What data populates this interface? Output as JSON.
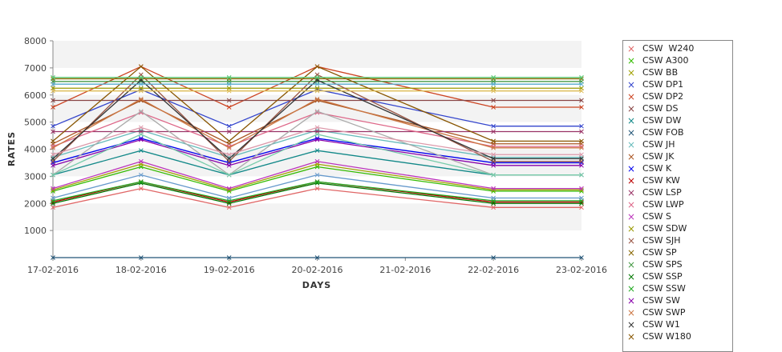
{
  "chart_data": {
    "type": "line",
    "title": "",
    "xlabel": "DAYS",
    "ylabel": "RATES",
    "categories": [
      "17-02-2016",
      "18-02-2016",
      "19-02-2016",
      "20-02-2016",
      "21-02-2016",
      "22-02-2016",
      "23-02-2016"
    ],
    "y_ticks": [
      "1000",
      "2000",
      "3000",
      "4000",
      "5000",
      "6000",
      "7000",
      "8000"
    ],
    "ylim": [
      0,
      8000
    ],
    "grid": "alternating horizontal bands",
    "legend_position": "right",
    "series": [
      {
        "name": "CSW  W240",
        "color": "#e06666",
        "values": [
          1850,
          2550,
          1850,
          2550,
          null,
          1850,
          1850
        ]
      },
      {
        "name": "CSW A300",
        "color": "#33bb00",
        "values": [
          2450,
          3350,
          2450,
          3350,
          null,
          2450,
          2450
        ]
      },
      {
        "name": "CSW BB",
        "color": "#a0a000",
        "values": [
          2500,
          3450,
          2500,
          3450,
          null,
          2500,
          2500
        ]
      },
      {
        "name": "CSW DP1",
        "color": "#3344cc",
        "values": [
          4850,
          6200,
          4850,
          6200,
          null,
          4850,
          4850
        ]
      },
      {
        "name": "CSW DP2",
        "color": "#cc4422",
        "values": [
          5550,
          7050,
          5550,
          7050,
          null,
          5550,
          5550
        ]
      },
      {
        "name": "CSW DS",
        "color": "#884444",
        "values": [
          5800,
          5800,
          5800,
          5800,
          null,
          5800,
          5800
        ]
      },
      {
        "name": "CSW DW",
        "color": "#118888",
        "values": [
          3050,
          3950,
          3050,
          3950,
          null,
          3050,
          3050
        ]
      },
      {
        "name": "CSW FOB",
        "color": "#225577",
        "values": [
          0,
          0,
          0,
          0,
          null,
          0,
          0
        ]
      },
      {
        "name": "CSW JH",
        "color": "#66bbbb",
        "values": [
          3700,
          4700,
          3700,
          4700,
          null,
          3700,
          3700
        ]
      },
      {
        "name": "CSW JK",
        "color": "#aa5522",
        "values": [
          4200,
          5800,
          4200,
          5800,
          null,
          4200,
          4200
        ]
      },
      {
        "name": "CSW K",
        "color": "#0000ee",
        "values": [
          3500,
          4400,
          3500,
          4400,
          null,
          3500,
          3500
        ]
      },
      {
        "name": "CSW KW",
        "color": "#bb0000",
        "values": [
          2050,
          2800,
          2050,
          2800,
          null,
          2050,
          2050
        ]
      },
      {
        "name": "CSW LSP",
        "color": "#993366",
        "values": [
          4650,
          4650,
          4650,
          4650,
          null,
          4650,
          4650
        ]
      },
      {
        "name": "CSW LWP",
        "color": "#dd6688",
        "values": [
          4100,
          5350,
          4100,
          5350,
          null,
          4100,
          4100
        ]
      },
      {
        "name": "CSW S",
        "color": "#bb33bb",
        "values": [
          2550,
          3550,
          2550,
          3550,
          null,
          2550,
          2550
        ]
      },
      {
        "name": "CSW SDW",
        "color": "#999900",
        "values": [
          6250,
          6250,
          6250,
          6250,
          null,
          6250,
          6250
        ]
      },
      {
        "name": "CSW SJH",
        "color": "#995544",
        "values": [
          3550,
          6750,
          3550,
          6750,
          null,
          3550,
          3550
        ]
      },
      {
        "name": "CSW SP",
        "color": "#886600",
        "values": [
          6600,
          6600,
          6600,
          6600,
          null,
          6600,
          6600
        ]
      },
      {
        "name": "CSW SPS",
        "color": "#449944",
        "values": [
          6500,
          6500,
          6500,
          6500,
          null,
          6500,
          6500
        ]
      },
      {
        "name": "CSW SSP",
        "color": "#007700",
        "values": [
          2000,
          2750,
          2000,
          2750,
          null,
          2000,
          2000
        ]
      },
      {
        "name": "CSW SSW",
        "color": "#22aa22",
        "values": [
          2100,
          2800,
          2100,
          2800,
          null,
          2100,
          2100
        ]
      },
      {
        "name": "CSW SW",
        "color": "#8800aa",
        "values": [
          3400,
          4350,
          3400,
          4350,
          null,
          3400,
          3400
        ]
      },
      {
        "name": "CSW SWP",
        "color": "#cc7744",
        "values": [
          4050,
          5850,
          4050,
          5850,
          null,
          4050,
          4050
        ]
      },
      {
        "name": "CSW W1",
        "color": "#333333",
        "values": [
          3650,
          6550,
          3650,
          6550,
          null,
          3650,
          3650
        ]
      },
      {
        "name": "CSW W180",
        "color": "#885500",
        "values": [
          4300,
          7050,
          4300,
          7050,
          null,
          4300,
          4300
        ]
      },
      {
        "name": "",
        "color": "#55cc77",
        "values": [
          6650,
          6650,
          6650,
          6650,
          null,
          6650,
          6650
        ]
      },
      {
        "name": "",
        "color": "#55aacc",
        "values": [
          6400,
          6400,
          6400,
          6400,
          null,
          6400,
          6400
        ]
      },
      {
        "name": "",
        "color": "#ddbb55",
        "values": [
          6150,
          6150,
          6150,
          6150,
          null,
          6150,
          6150
        ]
      },
      {
        "name": "",
        "color": "#aaaaaa",
        "values": [
          3050,
          5400,
          3050,
          5400,
          null,
          3050,
          3050
        ]
      },
      {
        "name": "",
        "color": "#6699cc",
        "values": [
          2200,
          3050,
          2200,
          3050,
          null,
          2200,
          2200
        ]
      },
      {
        "name": "",
        "color": "#dd99aa",
        "values": [
          3800,
          4800,
          3800,
          4800,
          null,
          3800,
          3800
        ]
      },
      {
        "name": "",
        "color": "#77ccaa",
        "values": [
          3050,
          4550,
          3050,
          4550,
          null,
          3050,
          3050
        ]
      }
    ]
  }
}
